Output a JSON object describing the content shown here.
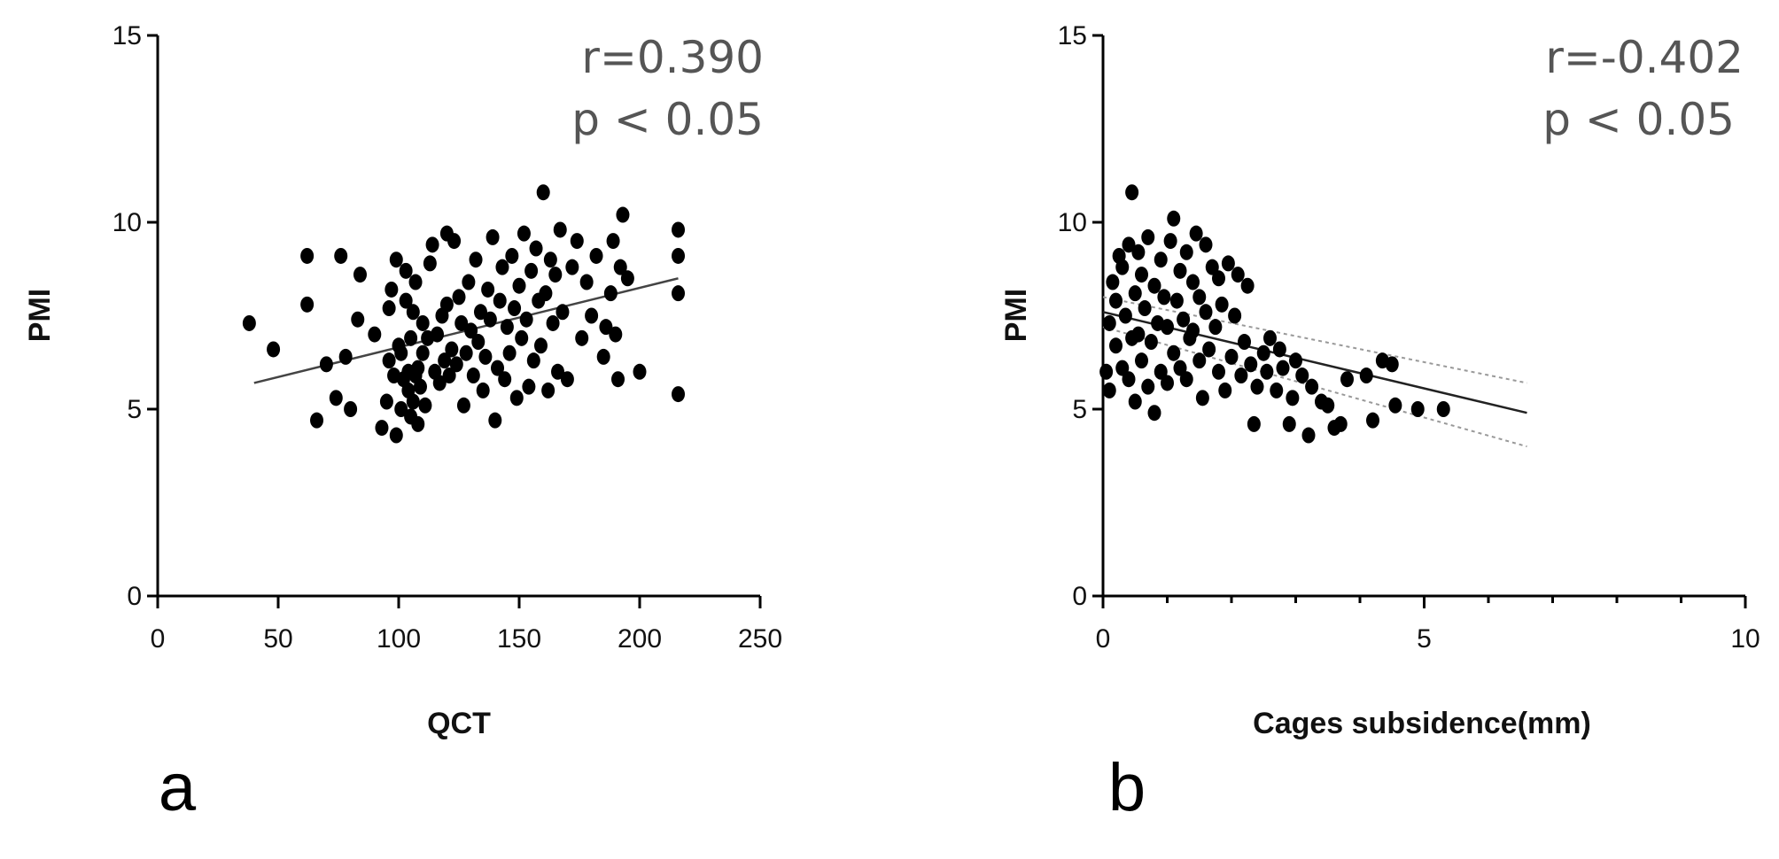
{
  "chart_data": [
    {
      "type": "scatter",
      "panel_label": "a",
      "xlabel": "QCT",
      "ylabel": "PMI",
      "xlim": [
        0,
        250
      ],
      "ylim": [
        0,
        15
      ],
      "xticks": [
        0,
        50,
        100,
        150,
        200,
        250
      ],
      "yticks": [
        0,
        5,
        10,
        15
      ],
      "annotations": [
        "r=0.390",
        "p < 0.05"
      ],
      "grid": false,
      "marker_color": "#000000",
      "fit_line": {
        "x": [
          40,
          216
        ],
        "y": [
          5.7,
          8.5
        ],
        "color": "#444444"
      },
      "points": [
        [
          38,
          7.3
        ],
        [
          48,
          6.6
        ],
        [
          62,
          9.1
        ],
        [
          62,
          7.8
        ],
        [
          66,
          4.7
        ],
        [
          70,
          6.2
        ],
        [
          74,
          5.3
        ],
        [
          76,
          9.1
        ],
        [
          78,
          6.4
        ],
        [
          80,
          5.0
        ],
        [
          83,
          7.4
        ],
        [
          84,
          8.6
        ],
        [
          90,
          7.0
        ],
        [
          93,
          4.5
        ],
        [
          95,
          5.2
        ],
        [
          96,
          6.3
        ],
        [
          96,
          7.7
        ],
        [
          97,
          8.2
        ],
        [
          98,
          5.9
        ],
        [
          99,
          9.0
        ],
        [
          99,
          4.3
        ],
        [
          100,
          6.7
        ],
        [
          101,
          5.0
        ],
        [
          101,
          6.5
        ],
        [
          102,
          5.8
        ],
        [
          103,
          7.9
        ],
        [
          103,
          8.7
        ],
        [
          104,
          5.5
        ],
        [
          104,
          6.0
        ],
        [
          105,
          4.8
        ],
        [
          105,
          6.9
        ],
        [
          106,
          5.2
        ],
        [
          106,
          7.6
        ],
        [
          107,
          5.9
        ],
        [
          107,
          8.4
        ],
        [
          108,
          4.6
        ],
        [
          108,
          6.1
        ],
        [
          109,
          5.6
        ],
        [
          110,
          6.5
        ],
        [
          110,
          7.3
        ],
        [
          111,
          5.1
        ],
        [
          112,
          6.9
        ],
        [
          113,
          8.9
        ],
        [
          114,
          9.4
        ],
        [
          115,
          6.0
        ],
        [
          116,
          7.0
        ],
        [
          117,
          5.7
        ],
        [
          118,
          7.5
        ],
        [
          119,
          6.3
        ],
        [
          120,
          9.7
        ],
        [
          120,
          7.8
        ],
        [
          121,
          5.9
        ],
        [
          122,
          6.6
        ],
        [
          123,
          9.5
        ],
        [
          124,
          6.2
        ],
        [
          125,
          8.0
        ],
        [
          126,
          7.3
        ],
        [
          127,
          5.1
        ],
        [
          128,
          6.5
        ],
        [
          129,
          8.4
        ],
        [
          130,
          7.1
        ],
        [
          131,
          5.9
        ],
        [
          132,
          9.0
        ],
        [
          133,
          6.8
        ],
        [
          134,
          7.6
        ],
        [
          135,
          5.5
        ],
        [
          136,
          6.4
        ],
        [
          137,
          8.2
        ],
        [
          138,
          7.4
        ],
        [
          139,
          9.6
        ],
        [
          140,
          4.7
        ],
        [
          141,
          6.1
        ],
        [
          142,
          7.9
        ],
        [
          143,
          8.8
        ],
        [
          144,
          5.8
        ],
        [
          145,
          7.2
        ],
        [
          146,
          6.5
        ],
        [
          147,
          9.1
        ],
        [
          148,
          7.7
        ],
        [
          149,
          5.3
        ],
        [
          150,
          8.3
        ],
        [
          151,
          6.9
        ],
        [
          152,
          9.7
        ],
        [
          153,
          7.4
        ],
        [
          154,
          5.6
        ],
        [
          155,
          8.7
        ],
        [
          156,
          6.3
        ],
        [
          157,
          9.3
        ],
        [
          158,
          7.9
        ],
        [
          159,
          6.7
        ],
        [
          160,
          10.8
        ],
        [
          161,
          8.1
        ],
        [
          162,
          5.5
        ],
        [
          163,
          9.0
        ],
        [
          164,
          7.3
        ],
        [
          165,
          8.6
        ],
        [
          166,
          6.0
        ],
        [
          167,
          9.8
        ],
        [
          168,
          7.6
        ],
        [
          170,
          5.8
        ],
        [
          172,
          8.8
        ],
        [
          174,
          9.5
        ],
        [
          176,
          6.9
        ],
        [
          178,
          8.4
        ],
        [
          180,
          7.5
        ],
        [
          182,
          9.1
        ],
        [
          185,
          6.4
        ],
        [
          186,
          7.2
        ],
        [
          188,
          8.1
        ],
        [
          189,
          9.5
        ],
        [
          190,
          7.0
        ],
        [
          191,
          5.8
        ],
        [
          192,
          8.8
        ],
        [
          193,
          10.2
        ],
        [
          195,
          8.5
        ],
        [
          200,
          6.0
        ],
        [
          216,
          9.8
        ],
        [
          216,
          9.1
        ],
        [
          216,
          8.1
        ],
        [
          216,
          5.4
        ]
      ]
    },
    {
      "type": "scatter",
      "panel_label": "b",
      "xlabel": "Cages subsidence(mm)",
      "ylabel": "PMI",
      "xlim": [
        0,
        10
      ],
      "ylim": [
        0,
        15
      ],
      "xticks": [
        0,
        5,
        10
      ],
      "yticks": [
        0,
        5,
        10,
        15
      ],
      "annotations": [
        "r=-0.402",
        "p < 0.05"
      ],
      "grid": false,
      "marker_color": "#000000",
      "fit_line": {
        "x": [
          0,
          6.6
        ],
        "y": [
          7.6,
          4.9
        ],
        "color": "#222222"
      },
      "confidence_band": {
        "x": [
          0,
          6.6
        ],
        "upper": [
          8.0,
          5.7
        ],
        "lower": [
          7.2,
          4.0
        ],
        "color": "#999999"
      },
      "points": [
        [
          0.05,
          6.0
        ],
        [
          0.1,
          7.3
        ],
        [
          0.1,
          5.5
        ],
        [
          0.15,
          8.4
        ],
        [
          0.2,
          6.7
        ],
        [
          0.2,
          7.9
        ],
        [
          0.25,
          9.1
        ],
        [
          0.3,
          6.1
        ],
        [
          0.3,
          8.8
        ],
        [
          0.35,
          7.5
        ],
        [
          0.4,
          5.8
        ],
        [
          0.4,
          9.4
        ],
        [
          0.45,
          6.9
        ],
        [
          0.45,
          10.8
        ],
        [
          0.5,
          8.1
        ],
        [
          0.5,
          5.2
        ],
        [
          0.55,
          7.0
        ],
        [
          0.55,
          9.2
        ],
        [
          0.6,
          6.3
        ],
        [
          0.6,
          8.6
        ],
        [
          0.65,
          7.7
        ],
        [
          0.7,
          5.6
        ],
        [
          0.7,
          9.6
        ],
        [
          0.75,
          6.8
        ],
        [
          0.8,
          8.3
        ],
        [
          0.8,
          4.9
        ],
        [
          0.85,
          7.3
        ],
        [
          0.9,
          9.0
        ],
        [
          0.9,
          6.0
        ],
        [
          0.95,
          8.0
        ],
        [
          1.0,
          7.2
        ],
        [
          1.0,
          5.7
        ],
        [
          1.05,
          9.5
        ],
        [
          1.1,
          6.5
        ],
        [
          1.1,
          10.1
        ],
        [
          1.15,
          7.9
        ],
        [
          1.2,
          8.7
        ],
        [
          1.2,
          6.1
        ],
        [
          1.25,
          7.4
        ],
        [
          1.3,
          9.2
        ],
        [
          1.3,
          5.8
        ],
        [
          1.35,
          6.9
        ],
        [
          1.4,
          8.4
        ],
        [
          1.4,
          7.1
        ],
        [
          1.45,
          9.7
        ],
        [
          1.5,
          6.3
        ],
        [
          1.5,
          8.0
        ],
        [
          1.55,
          5.3
        ],
        [
          1.6,
          7.6
        ],
        [
          1.6,
          9.4
        ],
        [
          1.65,
          6.6
        ],
        [
          1.7,
          8.8
        ],
        [
          1.75,
          7.2
        ],
        [
          1.8,
          6.0
        ],
        [
          1.8,
          8.5
        ],
        [
          1.85,
          7.8
        ],
        [
          1.9,
          5.5
        ],
        [
          1.95,
          8.9
        ],
        [
          2.0,
          6.4
        ],
        [
          2.05,
          7.5
        ],
        [
          2.1,
          8.6
        ],
        [
          2.15,
          5.9
        ],
        [
          2.2,
          6.8
        ],
        [
          2.25,
          8.3
        ],
        [
          2.3,
          6.2
        ],
        [
          2.35,
          4.6
        ],
        [
          2.4,
          5.6
        ],
        [
          2.5,
          6.5
        ],
        [
          2.55,
          6.0
        ],
        [
          2.6,
          6.9
        ],
        [
          2.7,
          5.5
        ],
        [
          2.75,
          6.6
        ],
        [
          2.8,
          6.1
        ],
        [
          2.9,
          4.6
        ],
        [
          2.95,
          5.3
        ],
        [
          3.0,
          6.3
        ],
        [
          3.1,
          5.9
        ],
        [
          3.2,
          4.3
        ],
        [
          3.25,
          5.6
        ],
        [
          3.4,
          5.2
        ],
        [
          3.5,
          5.1
        ],
        [
          3.6,
          4.5
        ],
        [
          3.7,
          4.6
        ],
        [
          3.8,
          5.8
        ],
        [
          4.1,
          5.9
        ],
        [
          4.2,
          4.7
        ],
        [
          4.35,
          6.3
        ],
        [
          4.5,
          6.2
        ],
        [
          4.55,
          5.1
        ],
        [
          4.9,
          5.0
        ],
        [
          5.3,
          5.0
        ]
      ]
    }
  ]
}
